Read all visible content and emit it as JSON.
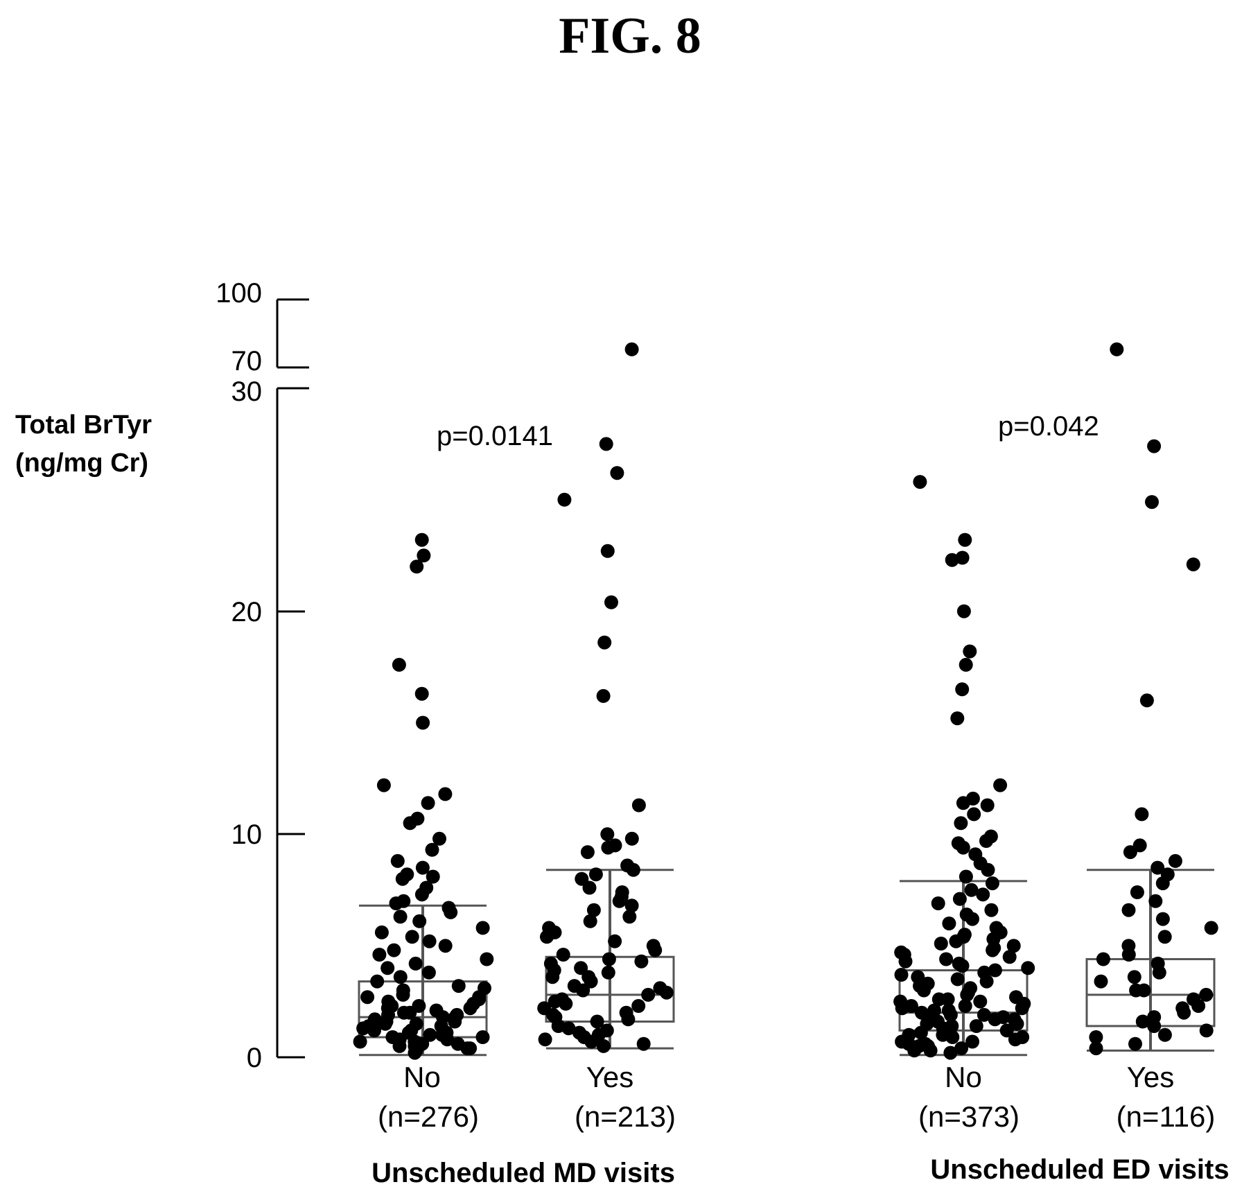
{
  "figure": {
    "title": "FIG. 8"
  },
  "chart_data": {
    "type": "scatter",
    "ylabel_line1": "Total BrTyr",
    "ylabel_line2": "(ng/mg Cr)",
    "y_axis": {
      "break": true,
      "lower_range": [
        0,
        30
      ],
      "upper_range": [
        70,
        100
      ],
      "lower_ticks": [
        "0",
        "10",
        "20",
        "30"
      ],
      "upper_ticks": [
        "70",
        "100"
      ]
    },
    "groups": [
      {
        "name": "Unscheduled MD visits",
        "p_value": "p=0.0141",
        "categories": [
          {
            "label": "No",
            "n_label": "(n=276)",
            "box": {
              "q1": 0.9,
              "median": 1.8,
              "q3": 3.4,
              "whisker_low": 0.1,
              "whisker_high": 6.8
            },
            "points": [
              23.2,
              22.5,
              22.0,
              17.6,
              16.3,
              15.0,
              12.2,
              11.8,
              11.4,
              10.7,
              10.5,
              9.8,
              9.3,
              8.8,
              8.5,
              8.2,
              8.1,
              8.0,
              7.6,
              7.3,
              7.0,
              6.9,
              6.7,
              6.5,
              6.3,
              6.1,
              5.8,
              5.6,
              5.4,
              5.2,
              5.0,
              4.8,
              4.6,
              4.4,
              4.2,
              4.0,
              3.8,
              3.6,
              3.4,
              3.2,
              3.0,
              2.8,
              2.7,
              2.6,
              2.5,
              2.4,
              2.3,
              2.2,
              2.1,
              2.0,
              1.9,
              1.8,
              1.7,
              1.6,
              1.5,
              1.4,
              1.3,
              1.2,
              1.1,
              1.0,
              0.9,
              0.8,
              0.7,
              0.6,
              0.5,
              0.4,
              0.3,
              0.2,
              2.3,
              1.9,
              1.6,
              1.2,
              0.9,
              0.6,
              0.4,
              3.1,
              2.7,
              2.2,
              1.8,
              1.4,
              1.0,
              0.7,
              0.5,
              2.0,
              1.5,
              1.1,
              0.8
            ]
          },
          {
            "label": "Yes",
            "n_label": "(n=213)",
            "box": {
              "q1": 1.6,
              "median": 2.8,
              "q3": 4.5,
              "whisker_low": 0.4,
              "whisker_high": 8.4
            },
            "points": [
              78.0,
              27.5,
              26.2,
              25.0,
              22.7,
              20.4,
              18.6,
              16.2,
              11.3,
              10.0,
              9.8,
              9.5,
              9.4,
              9.2,
              8.6,
              8.4,
              8.2,
              8.0,
              7.6,
              7.4,
              7.2,
              7.0,
              6.8,
              6.6,
              6.3,
              6.1,
              5.8,
              5.6,
              5.4,
              5.2,
              5.0,
              4.8,
              4.6,
              4.4,
              4.2,
              4.0,
              3.8,
              3.6,
              3.4,
              3.2,
              3.0,
              2.8,
              2.6,
              2.4,
              2.2,
              2.0,
              1.8,
              1.6,
              1.4,
              1.2,
              1.0,
              0.8,
              0.6,
              0.5,
              4.3,
              3.6,
              2.9,
              2.3,
              1.7,
              1.1,
              0.7,
              3.9,
              3.1,
              2.5,
              1.9,
              1.3,
              0.9
            ]
          }
        ]
      },
      {
        "name": "Unscheduled ED visits",
        "p_value": "p=0.042",
        "categories": [
          {
            "label": "No",
            "n_label": "(n=373)",
            "box": {
              "q1": 1.2,
              "median": 2.0,
              "q3": 3.9,
              "whisker_low": 0.1,
              "whisker_high": 7.9
            },
            "points": [
              25.8,
              23.2,
              22.4,
              22.3,
              20.0,
              18.2,
              17.6,
              16.5,
              15.2,
              12.2,
              11.6,
              11.4,
              11.3,
              10.9,
              10.5,
              9.9,
              9.7,
              9.6,
              9.4,
              9.1,
              8.7,
              8.4,
              8.1,
              7.8,
              7.5,
              7.3,
              7.1,
              6.9,
              6.6,
              6.4,
              6.2,
              6.0,
              5.8,
              5.6,
              5.4,
              5.2,
              5.0,
              4.8,
              4.6,
              4.4,
              4.2,
              4.0,
              3.8,
              3.6,
              3.4,
              3.2,
              3.0,
              2.8,
              2.6,
              2.5,
              2.4,
              2.3,
              2.2,
              2.1,
              2.0,
              1.9,
              1.8,
              1.7,
              1.6,
              1.5,
              1.4,
              1.3,
              1.2,
              1.1,
              1.0,
              0.9,
              0.8,
              0.7,
              0.6,
              0.5,
              0.4,
              0.3,
              0.2,
              5.5,
              5.1,
              4.7,
              4.3,
              3.9,
              3.5,
              3.1,
              2.7,
              2.3,
              1.9,
              1.5,
              1.1,
              0.7,
              0.3,
              5.3,
              4.5,
              3.7,
              2.9,
              2.1,
              1.3,
              0.5,
              4.9,
              4.1,
              3.3,
              2.5,
              1.7,
              0.9,
              2.6,
              2.2,
              1.8,
              1.4,
              1.0,
              0.6
            ]
          },
          {
            "label": "Yes",
            "n_label": "(n=116)",
            "box": {
              "q1": 1.4,
              "median": 2.8,
              "q3": 4.4,
              "whisker_low": 0.3,
              "whisker_high": 8.4
            },
            "points": [
              78.0,
              27.4,
              24.9,
              22.1,
              16.0,
              10.9,
              9.5,
              9.2,
              8.8,
              8.5,
              8.2,
              7.8,
              7.4,
              7.0,
              6.6,
              6.2,
              5.8,
              5.4,
              5.0,
              4.6,
              4.2,
              3.8,
              3.4,
              3.0,
              2.6,
              2.2,
              1.8,
              1.4,
              1.0,
              0.6,
              0.4,
              4.4,
              3.6,
              2.8,
              2.0,
              1.2,
              3.0,
              2.3,
              1.6,
              0.9
            ]
          }
        ]
      }
    ]
  }
}
